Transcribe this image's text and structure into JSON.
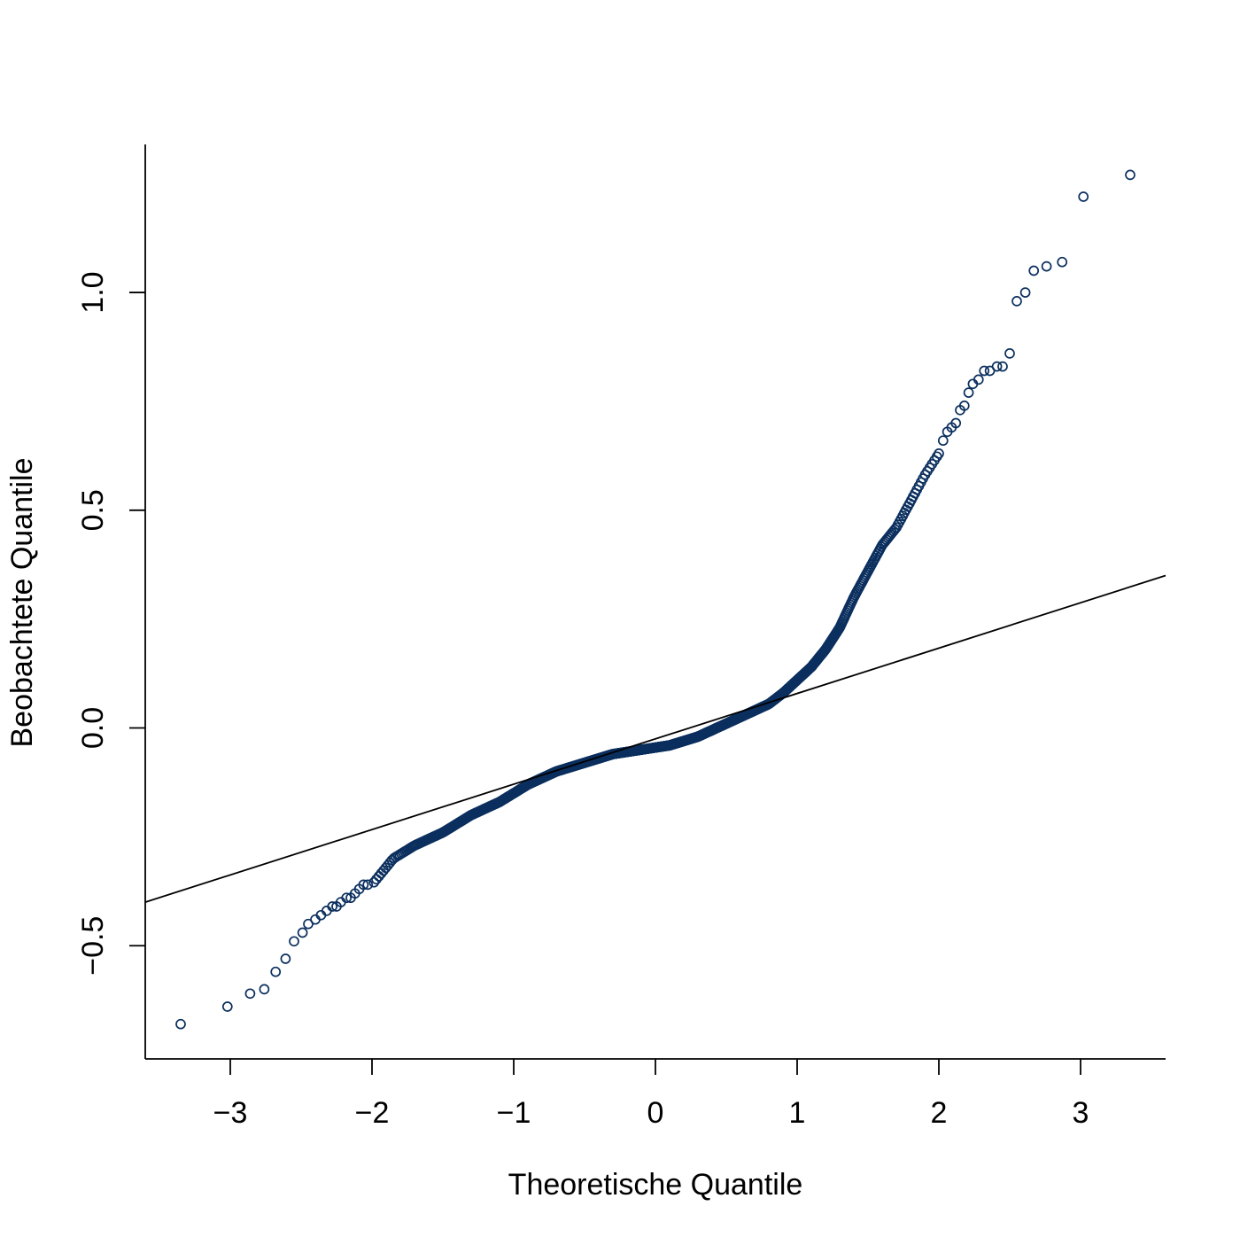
{
  "chart_data": {
    "type": "scatter",
    "title": "",
    "xlabel": "Theoretische Quantile",
    "ylabel": "Beobachtete Quantile",
    "xlim": [
      -3.6,
      3.6
    ],
    "ylim": [
      -0.76,
      1.34
    ],
    "x_ticks": [
      -3,
      -2,
      -1,
      0,
      1,
      2,
      3
    ],
    "x_tick_labels": [
      "−3",
      "−2",
      "−1",
      "0",
      "1",
      "2",
      "3"
    ],
    "y_ticks": [
      -0.5,
      0.0,
      0.5,
      1.0
    ],
    "y_tick_labels": [
      "−0.5",
      "0.0",
      "0.5",
      "1.0"
    ],
    "grid": false,
    "legend": "none",
    "point_color": "#0b2f5e",
    "line_color": "#000000",
    "reference_line": {
      "x": [
        -3.6,
        3.6
      ],
      "y": [
        -0.4,
        0.35
      ]
    },
    "series": [
      {
        "curve_x": [
          -3.35,
          -3.0,
          -2.8,
          -2.6,
          -2.4,
          -2.2,
          -2.0,
          -1.85,
          -1.7,
          -1.5,
          -1.3,
          -1.1,
          -0.9,
          -0.7,
          -0.5,
          -0.3,
          -0.1,
          0.0,
          0.1,
          0.3,
          0.5,
          0.7,
          0.8,
          0.9,
          1.0,
          1.1,
          1.2,
          1.3,
          1.4,
          1.5,
          1.6,
          1.7,
          1.8,
          1.9,
          2.0,
          2.1,
          2.2,
          2.3,
          2.45
        ],
        "curve_y": [
          -0.68,
          -0.64,
          -0.6,
          -0.53,
          -0.43,
          -0.41,
          -0.36,
          -0.3,
          -0.27,
          -0.24,
          -0.2,
          -0.17,
          -0.13,
          -0.1,
          -0.08,
          -0.06,
          -0.05,
          -0.045,
          -0.04,
          -0.02,
          0.01,
          0.04,
          0.055,
          0.08,
          0.11,
          0.14,
          0.18,
          0.23,
          0.3,
          0.36,
          0.42,
          0.46,
          0.52,
          0.58,
          0.63,
          0.7,
          0.79,
          0.82,
          0.86
        ],
        "n_points": 1000
      }
    ],
    "tail_points": {
      "x": [
        -3.35,
        -3.02,
        -2.86,
        -2.76,
        -2.68,
        -2.61,
        -2.55,
        -2.49,
        -2.45,
        -2.4,
        -2.36,
        -2.32,
        -2.28,
        -2.25,
        -2.22,
        -2.18,
        -2.15,
        -2.12,
        -2.09,
        -2.06,
        -2.03,
        2.0,
        2.03,
        2.06,
        2.09,
        2.12,
        2.15,
        2.18,
        2.21,
        2.24,
        2.28,
        2.32,
        2.36,
        2.41,
        2.45,
        2.5,
        2.55,
        2.61,
        2.67,
        2.76,
        2.87,
        3.02,
        3.35
      ],
      "y": [
        -0.68,
        -0.64,
        -0.61,
        -0.6,
        -0.56,
        -0.53,
        -0.49,
        -0.47,
        -0.45,
        -0.44,
        -0.43,
        -0.42,
        -0.41,
        -0.41,
        -0.4,
        -0.39,
        -0.39,
        -0.38,
        -0.37,
        -0.36,
        -0.36,
        0.63,
        0.66,
        0.68,
        0.69,
        0.7,
        0.73,
        0.74,
        0.77,
        0.79,
        0.8,
        0.82,
        0.82,
        0.83,
        0.83,
        0.86,
        0.98,
        1.0,
        1.05,
        1.06,
        1.07,
        1.22,
        1.27
      ]
    }
  }
}
